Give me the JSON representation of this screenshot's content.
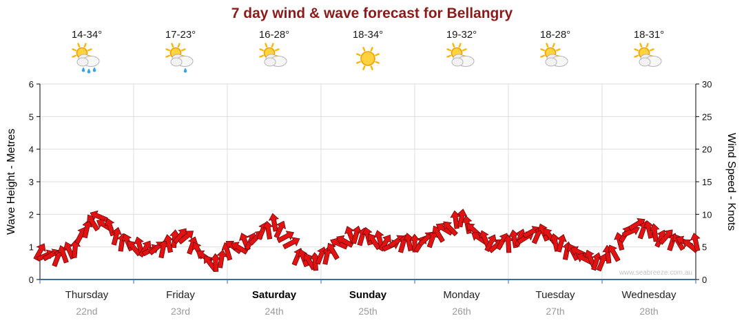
{
  "title": "7 day wind & wave forecast for Bellangry",
  "watermark": "www.seabreeze.com.au",
  "days": [
    {
      "name": "Thursday",
      "date": "22nd",
      "temp": "14-34°",
      "icon": "sun-cloud-rain",
      "weekend": false
    },
    {
      "name": "Friday",
      "date": "23rd",
      "temp": "17-23°",
      "icon": "sun-cloud-light-rain",
      "weekend": false
    },
    {
      "name": "Saturday",
      "date": "24th",
      "temp": "16-28°",
      "icon": "sun-cloud",
      "weekend": true
    },
    {
      "name": "Sunday",
      "date": "25th",
      "temp": "18-34°",
      "icon": "sun",
      "weekend": true
    },
    {
      "name": "Monday",
      "date": "26th",
      "temp": "19-32°",
      "icon": "sun-cloud",
      "weekend": false
    },
    {
      "name": "Tuesday",
      "date": "27th",
      "temp": "18-28°",
      "icon": "sun-cloud",
      "weekend": false
    },
    {
      "name": "Wednesday",
      "date": "28th",
      "temp": "18-31°",
      "icon": "sun-cloud",
      "weekend": false
    }
  ],
  "chart_data": {
    "type": "line",
    "title": "7 day wind & wave forecast for Bellangry",
    "categories": [
      "Thursday 22nd",
      "Friday 23rd",
      "Saturday 24th",
      "Sunday 25th",
      "Monday 26th",
      "Tuesday 27th",
      "Wednesday 28th"
    ],
    "left_axis": {
      "label": "Wave Height - Metres",
      "range": [
        0,
        6
      ],
      "ticks": [
        0,
        1,
        2,
        3,
        4,
        5,
        6
      ]
    },
    "right_axis": {
      "label": "Wind Speed - Knots",
      "range": [
        0,
        30
      ],
      "ticks": [
        0,
        5,
        10,
        15,
        20,
        25,
        30
      ]
    },
    "grid": true,
    "marker_style": "red wind direction arrows",
    "series": [
      {
        "name": "Wind Speed",
        "unit": "knots",
        "x_start_day": 0,
        "x_step_days": 0.125,
        "values": [
          4.3,
          3.5,
          3.8,
          5.0,
          8.0,
          9.5,
          7.8,
          5.8,
          5.2,
          4.8,
          4.6,
          5.4,
          7.0,
          5.5,
          3.4,
          2.3,
          4.4,
          5.2,
          6.0,
          7.2,
          8.6,
          6.8,
          3.8,
          2.7,
          3.4,
          4.4,
          6.2,
          7.0,
          6.4,
          6.0,
          5.4,
          5.8,
          5.5,
          6.0,
          7.0,
          8.2,
          9.6,
          7.4,
          6.0,
          5.4,
          5.8,
          6.4,
          7.0,
          7.2,
          6.0,
          4.6,
          4.0,
          3.0,
          2.8,
          4.4,
          7.0,
          8.2,
          7.6,
          6.6,
          6.0,
          5.6,
          5.5
        ]
      }
    ]
  }
}
